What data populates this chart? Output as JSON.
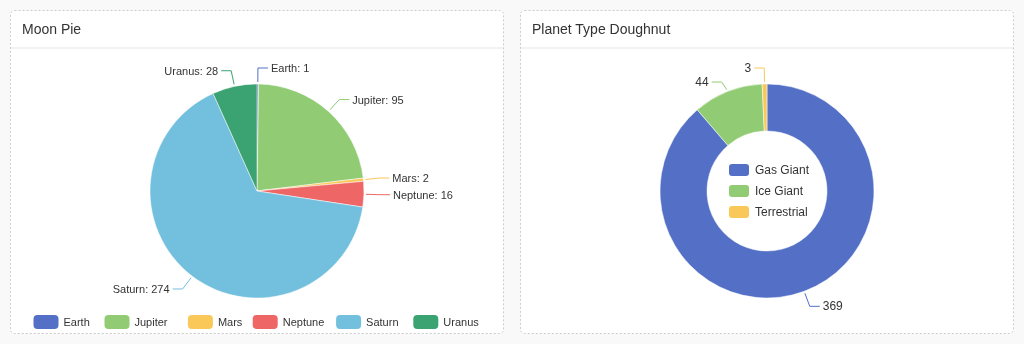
{
  "chart_data": [
    {
      "type": "pie",
      "title": "Moon Pie",
      "categories": [
        "Earth",
        "Jupiter",
        "Mars",
        "Neptune",
        "Saturn",
        "Uranus"
      ],
      "values": [
        1,
        95,
        2,
        16,
        274,
        28
      ],
      "colors": [
        "#5470c6",
        "#91cc75",
        "#fac858",
        "#ee6666",
        "#73c0de",
        "#3ba272"
      ],
      "legend": "bottom",
      "value_labels": [
        "Earth: 1",
        "Jupiter: 95",
        "Mars: 2",
        "Neptune: 16",
        "Saturn: 274",
        "Uranus: 28"
      ]
    },
    {
      "type": "donut",
      "title": "Planet Type Doughnut",
      "categories": [
        "Gas Giant",
        "Ice Giant",
        "Terrestrial"
      ],
      "values": [
        369,
        44,
        3
      ],
      "colors": [
        "#5470c6",
        "#91cc75",
        "#fac858"
      ],
      "legend": "center",
      "data_labels": true
    }
  ]
}
